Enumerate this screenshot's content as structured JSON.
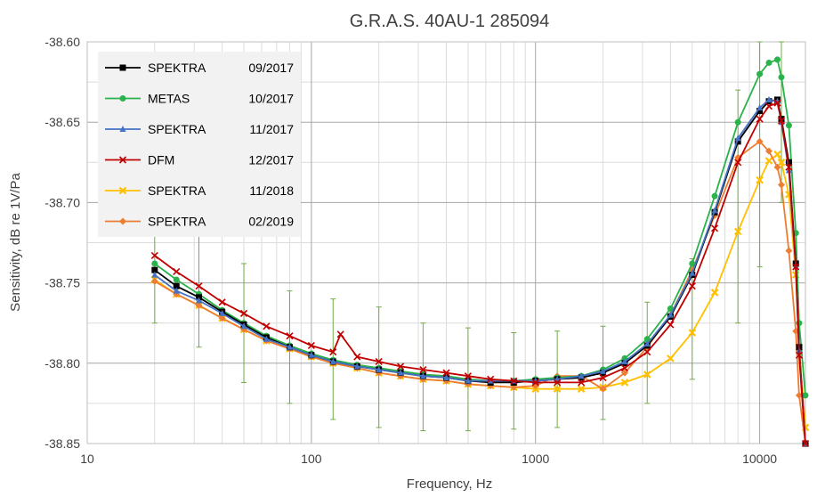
{
  "chart_data": {
    "type": "line",
    "title": "G.R.A.S. 40AU-1 285094",
    "xlabel": "Frequency, Hz",
    "ylabel": "Sensitivity, dB re 1V/Pa",
    "x_scale": "log",
    "xlim": [
      10,
      16000
    ],
    "ylim": [
      -38.85,
      -38.6
    ],
    "x_ticks": [
      10,
      100,
      1000,
      10000
    ],
    "x_tick_labels": [
      "10",
      "100",
      "1000",
      "10000"
    ],
    "y_ticks": [
      -38.6,
      -38.65,
      -38.7,
      -38.75,
      -38.8,
      -38.85
    ],
    "y_tick_labels": [
      "-38.60",
      "-38.65",
      "-38.70",
      "-38.75",
      "-38.80",
      "-38.85"
    ],
    "grid": true,
    "legend_position": "top-left",
    "series": [
      {
        "name": "SPEKTRA",
        "date": "09/2017",
        "color": "#000000",
        "marker": "square",
        "x": [
          20,
          25,
          31.5,
          40,
          50,
          63,
          80,
          100,
          125,
          160,
          200,
          250,
          315,
          400,
          500,
          630,
          800,
          1000,
          1250,
          1600,
          2000,
          2500,
          3150,
          4000,
          5000,
          6300,
          8000,
          10000,
          11000,
          12000,
          12500,
          13500,
          14500,
          15000,
          16000
        ],
        "y": [
          -38.742,
          -38.752,
          -38.759,
          -38.768,
          -38.776,
          -38.784,
          -38.79,
          -38.795,
          -38.799,
          -38.802,
          -38.804,
          -38.806,
          -38.808,
          -38.809,
          -38.811,
          -38.812,
          -38.812,
          -38.811,
          -38.81,
          -38.809,
          -38.806,
          -38.8,
          -38.789,
          -38.771,
          -38.745,
          -38.706,
          -38.662,
          -38.643,
          -38.637,
          -38.636,
          -38.648,
          -38.675,
          -38.738,
          -38.79,
          -38.85
        ]
      },
      {
        "name": "METAS",
        "date": "10/2017",
        "color": "#2ab24b",
        "marker": "circle",
        "x": [
          20,
          25,
          31.5,
          40,
          50,
          63,
          80,
          100,
          125,
          160,
          200,
          250,
          315,
          400,
          500,
          630,
          800,
          1000,
          1250,
          1600,
          2000,
          2500,
          3150,
          4000,
          5000,
          6300,
          8000,
          10000,
          11000,
          12000,
          12500,
          13500,
          14500,
          15000,
          16000
        ],
        "y": [
          -38.738,
          -38.748,
          -38.757,
          -38.767,
          -38.775,
          -38.783,
          -38.789,
          -38.794,
          -38.798,
          -38.801,
          -38.803,
          -38.805,
          -38.807,
          -38.808,
          -38.81,
          -38.811,
          -38.811,
          -38.81,
          -38.809,
          -38.808,
          -38.804,
          -38.797,
          -38.785,
          -38.766,
          -38.738,
          -38.696,
          -38.65,
          -38.62,
          -38.613,
          -38.611,
          -38.622,
          -38.652,
          -38.719,
          -38.775,
          -38.82
        ]
      },
      {
        "name": "SPEKTRA",
        "date": "11/2017",
        "color": "#4472c4",
        "marker": "triangle",
        "x": [
          20,
          25,
          31.5,
          40,
          50,
          63,
          80,
          100,
          125,
          160,
          200,
          250,
          315,
          400,
          500,
          630,
          800,
          1000,
          1250,
          1600,
          2000,
          2500,
          3150,
          4000,
          5000,
          6300,
          8000,
          10000,
          11000,
          12000,
          12500,
          13500,
          14500,
          15000,
          16000
        ],
        "y": [
          -38.745,
          -38.755,
          -38.761,
          -38.769,
          -38.777,
          -38.785,
          -38.79,
          -38.795,
          -38.799,
          -38.802,
          -38.804,
          -38.806,
          -38.808,
          -38.809,
          -38.811,
          -38.811,
          -38.811,
          -38.811,
          -38.81,
          -38.808,
          -38.805,
          -38.799,
          -38.788,
          -38.77,
          -38.744,
          -38.705,
          -38.66,
          -38.641,
          -38.636,
          -38.637,
          -38.65,
          -38.68,
          -38.74,
          -38.792,
          -38.85
        ]
      },
      {
        "name": "DFM",
        "date": "12/2017",
        "color": "#c00000",
        "marker": "cross",
        "x": [
          20,
          25,
          31.5,
          40,
          50,
          63,
          80,
          100,
          125,
          135,
          160,
          200,
          250,
          315,
          400,
          500,
          630,
          800,
          1000,
          1250,
          1600,
          2000,
          2500,
          3150,
          4000,
          5000,
          6300,
          8000,
          10000,
          11000,
          12000,
          12500,
          13500,
          14500,
          15000,
          16000
        ],
        "y": [
          -38.733,
          -38.743,
          -38.752,
          -38.762,
          -38.769,
          -38.777,
          -38.783,
          -38.789,
          -38.793,
          -38.782,
          -38.796,
          -38.799,
          -38.802,
          -38.804,
          -38.806,
          -38.808,
          -38.81,
          -38.811,
          -38.812,
          -38.812,
          -38.812,
          -38.809,
          -38.803,
          -38.793,
          -38.776,
          -38.752,
          -38.716,
          -38.675,
          -38.648,
          -38.64,
          -38.638,
          -38.649,
          -38.678,
          -38.74,
          -38.795,
          -38.85
        ]
      },
      {
        "name": "SPEKTRA",
        "date": "11/2018",
        "color": "#ffc000",
        "marker": "x",
        "x": [
          20,
          25,
          31.5,
          40,
          50,
          63,
          80,
          100,
          125,
          160,
          200,
          250,
          315,
          400,
          500,
          630,
          800,
          1000,
          1250,
          1600,
          2000,
          2500,
          3150,
          4000,
          5000,
          6300,
          8000,
          10000,
          11000,
          12000,
          12500,
          13500,
          14500,
          15000,
          16000
        ],
        "y": [
          -38.748,
          -38.757,
          -38.764,
          -38.772,
          -38.779,
          -38.786,
          -38.791,
          -38.796,
          -38.8,
          -38.803,
          -38.806,
          -38.808,
          -38.81,
          -38.811,
          -38.813,
          -38.814,
          -38.815,
          -38.816,
          -38.816,
          -38.816,
          -38.815,
          -38.812,
          -38.807,
          -38.797,
          -38.781,
          -38.756,
          -38.718,
          -38.686,
          -38.674,
          -38.67,
          -38.675,
          -38.695,
          -38.745,
          -38.79,
          -38.84
        ]
      },
      {
        "name": "SPEKTRA",
        "date": "02/2019",
        "color": "#ed7d31",
        "marker": "diamond",
        "x": [
          20,
          25,
          31.5,
          40,
          50,
          63,
          80,
          100,
          125,
          160,
          200,
          250,
          315,
          400,
          500,
          630,
          800,
          1000,
          1250,
          1600,
          2000,
          2500,
          3150,
          4000,
          5000,
          6300,
          8000,
          10000,
          11000,
          12000,
          12500,
          13500,
          14500,
          15000,
          16000
        ],
        "y": [
          -38.749,
          -38.757,
          -38.764,
          -38.772,
          -38.779,
          -38.786,
          -38.791,
          -38.796,
          -38.8,
          -38.803,
          -38.806,
          -38.808,
          -38.81,
          -38.811,
          -38.813,
          -38.814,
          -38.815,
          -38.814,
          -38.808,
          -38.808,
          -38.816,
          -38.806,
          -38.79,
          -38.77,
          -38.742,
          -38.708,
          -38.672,
          -38.662,
          -38.668,
          -38.678,
          -38.689,
          -38.73,
          -38.78,
          -38.82,
          -38.85
        ]
      }
    ],
    "error_bars": {
      "series": "METAS",
      "color": "#70ad47",
      "x": [
        20,
        31.5,
        50,
        80,
        125,
        200,
        315,
        500,
        800,
        1250,
        2000,
        3150,
        5000,
        8000,
        10000,
        12500
      ],
      "low": [
        -38.775,
        -38.79,
        -38.812,
        -38.825,
        -38.835,
        -38.84,
        -38.842,
        -38.842,
        -38.841,
        -38.84,
        -38.835,
        -38.825,
        -38.81,
        -38.775,
        -38.74,
        -38.7
      ],
      "high": [
        -38.7,
        -38.72,
        -38.738,
        -38.755,
        -38.76,
        -38.765,
        -38.775,
        -38.778,
        -38.781,
        -38.78,
        -38.777,
        -38.762,
        -38.735,
        -38.63,
        -38.6,
        -38.6
      ]
    }
  }
}
